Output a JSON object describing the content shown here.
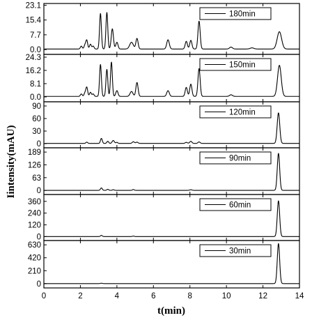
{
  "chart_data": {
    "type": "line",
    "xlabel": "t(min)",
    "ylabel": "Iintensity(mAU)",
    "xlim": [
      0,
      14
    ],
    "x_ticks": [
      "0",
      "2",
      "4",
      "6",
      "8",
      "10",
      "12",
      "14"
    ],
    "panels": [
      {
        "legend": "180min",
        "ylim": [
          -2.5,
          24
        ],
        "y_ticks": [
          "23.1",
          "15.4",
          "7.7",
          "0.0"
        ],
        "baseline": 0.3,
        "peaks": [
          [
            2.05,
            1.5,
            0.05
          ],
          [
            2.25,
            2.0,
            0.05
          ],
          [
            2.35,
            4.5,
            0.05
          ],
          [
            2.55,
            2.5,
            0.05
          ],
          [
            2.7,
            1.5,
            0.05
          ],
          [
            3.1,
            18.5,
            0.05
          ],
          [
            3.45,
            19.0,
            0.05
          ],
          [
            3.75,
            10.5,
            0.06
          ],
          [
            4.0,
            3.5,
            0.06
          ],
          [
            4.8,
            3.5,
            0.1
          ],
          [
            5.1,
            5.5,
            0.06
          ],
          [
            6.8,
            4.8,
            0.07
          ],
          [
            7.8,
            4.0,
            0.06
          ],
          [
            8.05,
            4.5,
            0.06
          ],
          [
            8.5,
            14.5,
            0.06
          ],
          [
            10.25,
            1.0,
            0.08
          ],
          [
            11.4,
            0.6,
            0.1
          ],
          [
            12.9,
            9.0,
            0.12
          ]
        ]
      },
      {
        "legend": "150min",
        "ylim": [
          -3,
          26
        ],
        "y_ticks": [
          "24.3",
          "16.2",
          "8.1",
          "0.0"
        ],
        "baseline": 0.3,
        "peaks": [
          [
            2.05,
            1.5,
            0.05
          ],
          [
            2.25,
            2.0,
            0.05
          ],
          [
            2.35,
            5.5,
            0.05
          ],
          [
            2.55,
            2.5,
            0.05
          ],
          [
            2.7,
            1.5,
            0.05
          ],
          [
            3.1,
            19.5,
            0.05
          ],
          [
            3.45,
            16.5,
            0.05
          ],
          [
            3.7,
            21.0,
            0.05
          ],
          [
            4.0,
            3.5,
            0.06
          ],
          [
            4.8,
            3.0,
            0.08
          ],
          [
            5.1,
            8.5,
            0.06
          ],
          [
            6.8,
            3.5,
            0.07
          ],
          [
            7.8,
            5.5,
            0.06
          ],
          [
            8.05,
            7.5,
            0.06
          ],
          [
            8.5,
            17.0,
            0.06
          ],
          [
            10.25,
            1.0,
            0.08
          ],
          [
            12.9,
            19.0,
            0.1
          ]
        ]
      },
      {
        "legend": "120min",
        "ylim": [
          -10,
          100
        ],
        "y_ticks": [
          "90",
          "60",
          "30",
          "0"
        ],
        "baseline": 0.5,
        "peaks": [
          [
            2.35,
            3.0,
            0.05
          ],
          [
            3.15,
            12.0,
            0.05
          ],
          [
            3.5,
            5.0,
            0.05
          ],
          [
            3.8,
            7.0,
            0.06
          ],
          [
            4.0,
            2.5,
            0.05
          ],
          [
            4.9,
            4.0,
            0.06
          ],
          [
            5.1,
            3.0,
            0.06
          ],
          [
            7.8,
            2.5,
            0.06
          ],
          [
            8.05,
            5.0,
            0.06
          ],
          [
            8.5,
            3.5,
            0.06
          ],
          [
            12.85,
            73.0,
            0.07
          ]
        ]
      },
      {
        "legend": "90min",
        "ylim": [
          -20,
          210
        ],
        "y_ticks": [
          "189",
          "126",
          "63",
          "0"
        ],
        "baseline": 0.5,
        "peaks": [
          [
            3.15,
            12.0,
            0.05
          ],
          [
            3.5,
            5.0,
            0.05
          ],
          [
            3.8,
            3.0,
            0.05
          ],
          [
            4.9,
            4.0,
            0.05
          ],
          [
            8.05,
            3.0,
            0.06
          ],
          [
            12.85,
            182.0,
            0.065
          ]
        ]
      },
      {
        "legend": "60min",
        "ylim": [
          -40,
          430
        ],
        "y_ticks": [
          "360",
          "240",
          "120",
          "0"
        ],
        "baseline": 0.5,
        "peaks": [
          [
            3.15,
            12.0,
            0.05
          ],
          [
            4.9,
            5.0,
            0.05
          ],
          [
            12.85,
            365.0,
            0.065
          ]
        ]
      },
      {
        "legend": "30min",
        "ylim": [
          -70,
          700
        ],
        "y_ticks": [
          "630",
          "420",
          "210",
          "0"
        ],
        "baseline": 0.5,
        "peaks": [
          [
            3.15,
            6.0,
            0.05
          ],
          [
            12.85,
            650.0,
            0.065
          ]
        ]
      }
    ]
  }
}
